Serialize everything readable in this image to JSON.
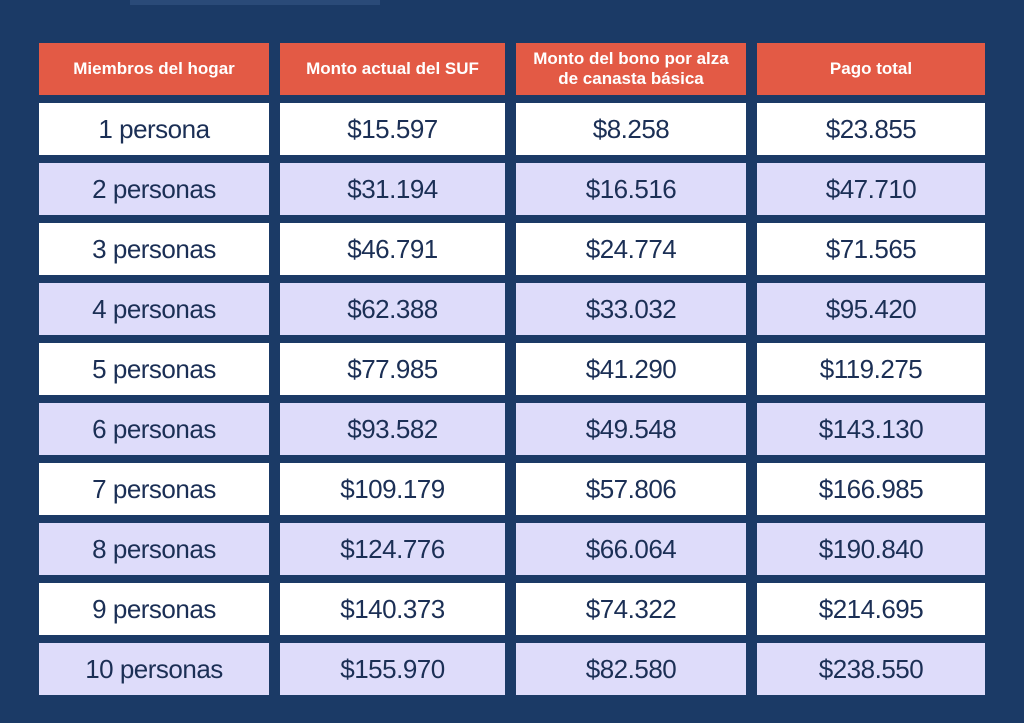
{
  "table": {
    "headers": [
      "Miembros del hogar",
      "Monto actual del SUF",
      "Monto del bono por alza de canasta básica",
      "Pago total"
    ],
    "rows": [
      [
        "1 persona",
        "$15.597",
        "$8.258",
        "$23.855"
      ],
      [
        "2 personas",
        "$31.194",
        "$16.516",
        "$47.710"
      ],
      [
        "3 personas",
        "$46.791",
        "$24.774",
        "$71.565"
      ],
      [
        "4 personas",
        "$62.388",
        "$33.032",
        "$95.420"
      ],
      [
        "5 personas",
        "$77.985",
        "$41.290",
        "$119.275"
      ],
      [
        "6 personas",
        "$93.582",
        "$49.548",
        "$143.130"
      ],
      [
        "7 personas",
        "$109.179",
        "$57.806",
        "$166.985"
      ],
      [
        "8 personas",
        "$124.776",
        "$66.064",
        "$190.840"
      ],
      [
        "9 personas",
        "$140.373",
        "$74.322",
        "$214.695"
      ],
      [
        "10 personas",
        "$155.970",
        "$82.580",
        "$238.550"
      ]
    ]
  },
  "colors": {
    "background": "#1b3a66",
    "header": "#e35a45",
    "row_light": "#ffffff",
    "row_tint": "#dedcfa",
    "text": "#1b2f55"
  }
}
